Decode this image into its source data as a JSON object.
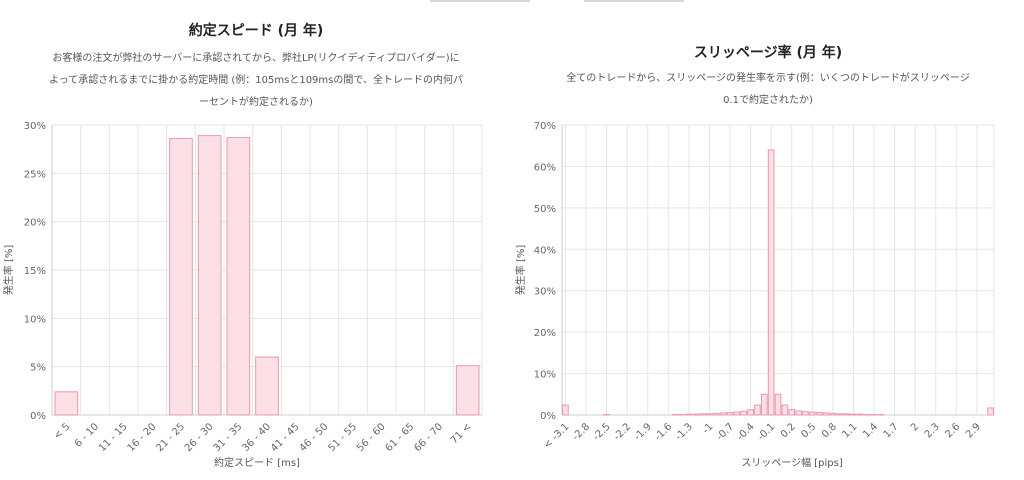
{
  "chart_data": [
    {
      "type": "bar",
      "title": "約定スピード (月 年)",
      "subtitle_lines": [
        "お客様の注文が弊社のサーバーに承認されてから、弊社LP(リクイディティプロバイダー)に",
        "よって承認されるまでに掛かる約定時間 (例：105msと109msの間で、全トレードの内何パ",
        "ーセントが約定されるか)"
      ],
      "xlabel": "約定スピード [ms]",
      "ylabel": "発生率 [%]",
      "ylim": [
        0,
        30
      ],
      "yticks": [
        "0%",
        "5%",
        "10%",
        "15%",
        "20%",
        "25%",
        "30%"
      ],
      "grid": true,
      "categories": [
        "< 5",
        "6 - 10",
        "11 - 15",
        "16 - 20",
        "21 - 25",
        "26 - 30",
        "31 - 35",
        "36 - 40",
        "41 - 45",
        "46 - 50",
        "51 - 55",
        "56 - 60",
        "61 - 65",
        "66 - 70",
        "71 <"
      ],
      "values": [
        2.4,
        0,
        0,
        0,
        28.6,
        28.9,
        28.7,
        6.0,
        0,
        0,
        0,
        0,
        0,
        0,
        5.1
      ]
    },
    {
      "type": "bar",
      "title": "スリッページ率 (月 年)",
      "subtitle_lines": [
        "全てのトレードから、スリッページの発生率を示す(例：いくつのトレードがスリッページ",
        "0.1で約定されたか)"
      ],
      "xlabel": "スリッページ幅 [pips]",
      "ylabel": "発生率 [%]",
      "ylim": [
        0,
        70
      ],
      "yticks": [
        "0%",
        "10%",
        "20%",
        "30%",
        "40%",
        "50%",
        "60%",
        "70%"
      ],
      "grid": true,
      "tick_labels": [
        "< -3.1",
        "-2.8",
        "-2.5",
        "-2.2",
        "-1.9",
        "-1.6",
        "-1.3",
        "-1",
        "-0.7",
        "-0.4",
        "-0.1",
        "0.2",
        "0.5",
        "0.8",
        "1.1",
        "1.4",
        "1.7",
        "2",
        "2.3",
        "2.6",
        "2.9"
      ],
      "x": [
        -3.1,
        -3.0,
        -2.9,
        -2.8,
        -2.7,
        -2.6,
        -2.5,
        -2.4,
        -2.3,
        -2.2,
        -2.1,
        -2.0,
        -1.9,
        -1.8,
        -1.7,
        -1.6,
        -1.5,
        -1.4,
        -1.3,
        -1.2,
        -1.1,
        -1.0,
        -0.9,
        -0.8,
        -0.7,
        -0.6,
        -0.5,
        -0.4,
        -0.3,
        -0.2,
        -0.1,
        0.0,
        0.1,
        0.2,
        0.3,
        0.4,
        0.5,
        0.6,
        0.7,
        0.8,
        0.9,
        1.0,
        1.1,
        1.2,
        1.3,
        1.4,
        1.5,
        1.6,
        1.7,
        1.8,
        1.9,
        2.0,
        2.1,
        2.2,
        2.3,
        2.4,
        2.5,
        2.6,
        2.7,
        2.8,
        2.9,
        3.0,
        3.1
      ],
      "values": [
        2.4,
        0,
        0,
        0,
        0,
        0,
        0.1,
        0,
        0,
        0,
        0,
        0,
        0,
        0,
        0,
        0,
        0.1,
        0.1,
        0.2,
        0.2,
        0.3,
        0.3,
        0.4,
        0.5,
        0.6,
        0.7,
        0.9,
        1.3,
        2.4,
        5.0,
        64.0,
        5.0,
        2.4,
        1.3,
        1.0,
        0.8,
        0.7,
        0.6,
        0.5,
        0.4,
        0.3,
        0.3,
        0.2,
        0.2,
        0.1,
        0.1,
        0.1,
        0,
        0,
        0,
        0,
        0,
        0,
        0,
        0,
        0,
        0,
        0,
        0,
        0,
        0,
        0,
        1.7
      ]
    }
  ]
}
